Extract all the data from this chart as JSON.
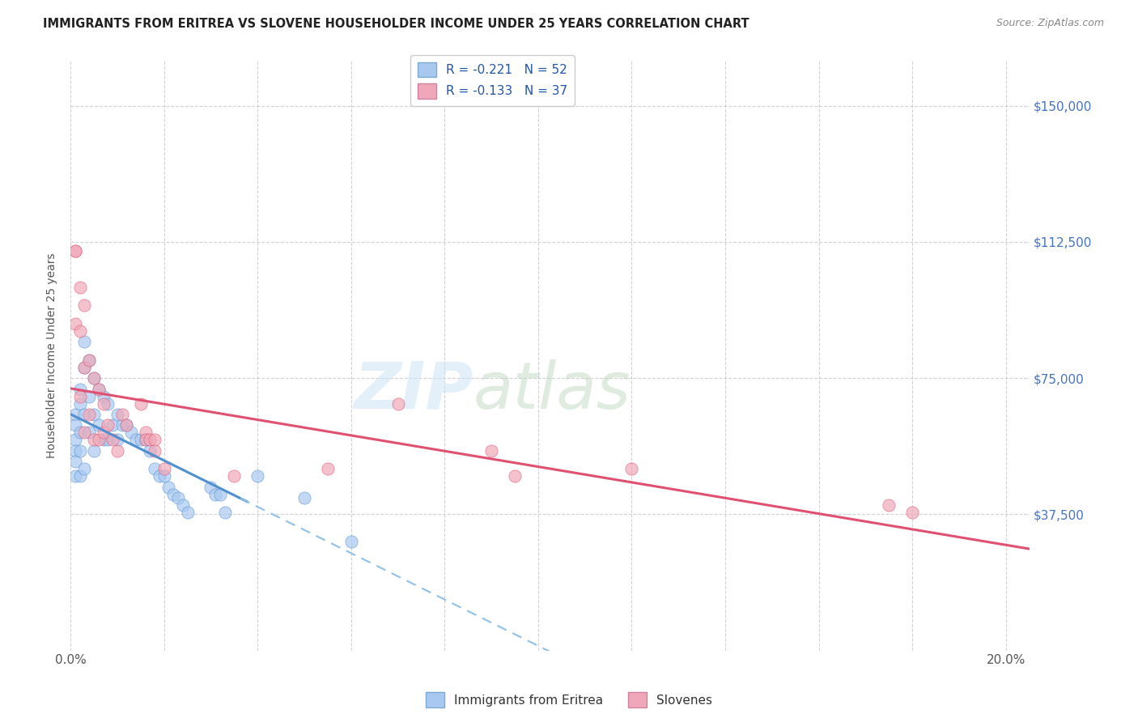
{
  "title": "IMMIGRANTS FROM ERITREA VS SLOVENE HOUSEHOLDER INCOME UNDER 25 YEARS CORRELATION CHART",
  "source": "Source: ZipAtlas.com",
  "ylabel": "Householder Income Under 25 years",
  "xlim": [
    0.0,
    0.205
  ],
  "ylim": [
    0,
    162500
  ],
  "yticks": [
    0,
    37500,
    75000,
    112500,
    150000
  ],
  "xticks": [
    0.0,
    0.02,
    0.04,
    0.06,
    0.08,
    0.1,
    0.12,
    0.14,
    0.16,
    0.18,
    0.2
  ],
  "legend_eritrea": "R = -0.221   N = 52",
  "legend_slovene": "R = -0.133   N = 37",
  "color_eritrea": "#a8c8f0",
  "color_slovene": "#f0a8b8",
  "eritrea_line_color": "#5090d0",
  "eritrea_dash_color": "#90c0e8",
  "slovene_line_color": "#e05070",
  "eritrea_x": [
    0.001,
    0.001,
    0.001,
    0.001,
    0.001,
    0.001,
    0.002,
    0.002,
    0.002,
    0.002,
    0.002,
    0.003,
    0.003,
    0.003,
    0.003,
    0.004,
    0.004,
    0.004,
    0.005,
    0.005,
    0.005,
    0.006,
    0.006,
    0.007,
    0.007,
    0.008,
    0.008,
    0.009,
    0.01,
    0.01,
    0.011,
    0.012,
    0.013,
    0.014,
    0.015,
    0.016,
    0.017,
    0.018,
    0.019,
    0.02,
    0.021,
    0.022,
    0.023,
    0.024,
    0.025,
    0.03,
    0.031,
    0.032,
    0.033,
    0.04,
    0.05,
    0.06
  ],
  "eritrea_y": [
    65000,
    62000,
    58000,
    55000,
    52000,
    48000,
    72000,
    68000,
    60000,
    55000,
    48000,
    85000,
    78000,
    65000,
    50000,
    80000,
    70000,
    60000,
    75000,
    65000,
    55000,
    72000,
    62000,
    70000,
    58000,
    68000,
    58000,
    62000,
    65000,
    58000,
    62000,
    62000,
    60000,
    58000,
    58000,
    58000,
    55000,
    50000,
    48000,
    48000,
    45000,
    43000,
    42000,
    40000,
    38000,
    45000,
    43000,
    43000,
    38000,
    48000,
    42000,
    30000
  ],
  "slovene_x": [
    0.001,
    0.001,
    0.001,
    0.002,
    0.002,
    0.002,
    0.003,
    0.003,
    0.003,
    0.004,
    0.004,
    0.005,
    0.005,
    0.006,
    0.006,
    0.007,
    0.007,
    0.008,
    0.009,
    0.01,
    0.011,
    0.012,
    0.015,
    0.016,
    0.016,
    0.017,
    0.018,
    0.018,
    0.02,
    0.035,
    0.055,
    0.07,
    0.09,
    0.095,
    0.12,
    0.175,
    0.18
  ],
  "slovene_y": [
    110000,
    110000,
    90000,
    100000,
    88000,
    70000,
    95000,
    78000,
    60000,
    80000,
    65000,
    75000,
    58000,
    72000,
    58000,
    68000,
    60000,
    62000,
    58000,
    55000,
    65000,
    62000,
    68000,
    60000,
    58000,
    58000,
    58000,
    55000,
    50000,
    48000,
    50000,
    68000,
    55000,
    48000,
    50000,
    40000,
    38000
  ]
}
